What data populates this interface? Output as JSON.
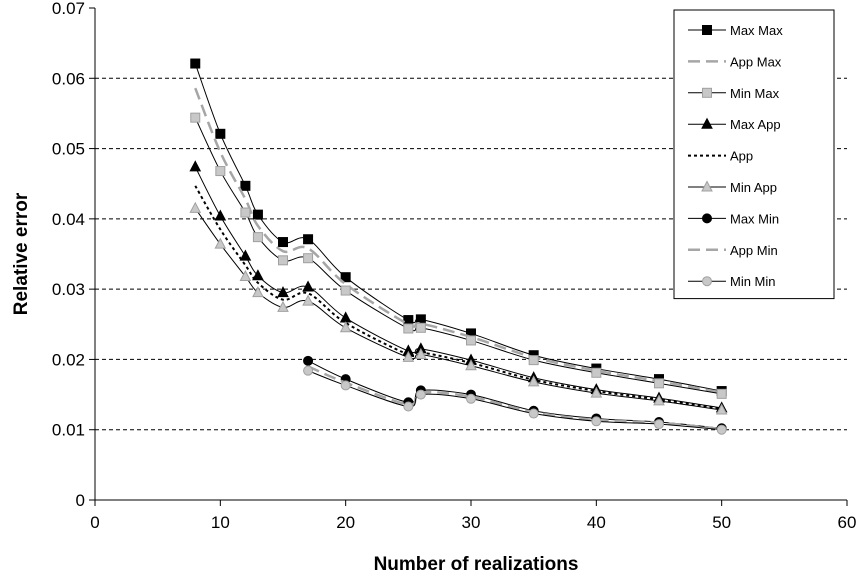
{
  "chart_data": {
    "type": "line",
    "title": "",
    "xlabel": "Number of realizations",
    "ylabel": "Relative error",
    "xlim": [
      0,
      60
    ],
    "ylim": [
      0,
      0.07
    ],
    "x_ticks": [
      "0",
      "10",
      "20",
      "30",
      "40",
      "50",
      "60"
    ],
    "y_ticks": [
      "0",
      "0.01",
      "0.02",
      "0.03",
      "0.04",
      "0.05",
      "0.06",
      "0.07"
    ],
    "grid": "horizontal dashed",
    "legend_position": "top-right",
    "series": [
      {
        "name": "Max Max",
        "color": "#000000",
        "line": "solid",
        "marker": "square",
        "marker_fill": "#000000",
        "x": [
          8,
          10,
          12,
          13,
          15,
          17,
          20,
          25,
          26,
          30,
          35,
          40,
          45,
          50
        ],
        "y": [
          0.0621,
          0.0521,
          0.0447,
          0.0406,
          0.0367,
          0.0371,
          0.0317,
          0.0256,
          0.0257,
          0.0237,
          0.0206,
          0.0187,
          0.0172,
          0.0155
        ]
      },
      {
        "name": "App Max",
        "color": "#a6a6a6",
        "line": "dashed",
        "marker": "none",
        "marker_fill": "none",
        "x": [
          8,
          10,
          12,
          13,
          15,
          17,
          20,
          25,
          26,
          30,
          35,
          40,
          45,
          50
        ],
        "y": [
          0.0586,
          0.0495,
          0.0428,
          0.039,
          0.0354,
          0.0358,
          0.0307,
          0.025,
          0.0251,
          0.0232,
          0.0203,
          0.0184,
          0.0169,
          0.0153
        ]
      },
      {
        "name": "Min Max",
        "color": "#000000",
        "line": "solid",
        "marker": "square",
        "marker_fill": "#c8c8c8",
        "x": [
          8,
          10,
          12,
          13,
          15,
          17,
          20,
          25,
          26,
          30,
          35,
          40,
          45,
          50
        ],
        "y": [
          0.0544,
          0.0468,
          0.0409,
          0.0374,
          0.0341,
          0.0344,
          0.0298,
          0.0244,
          0.0245,
          0.0227,
          0.0199,
          0.0181,
          0.0166,
          0.0151
        ]
      },
      {
        "name": "Max App",
        "color": "#000000",
        "line": "solid",
        "marker": "triangle",
        "marker_fill": "#000000",
        "x": [
          8,
          10,
          12,
          13,
          15,
          17,
          20,
          25,
          26,
          30,
          35,
          40,
          45,
          50
        ],
        "y": [
          0.0474,
          0.0404,
          0.0347,
          0.0319,
          0.0295,
          0.0303,
          0.0259,
          0.0212,
          0.0215,
          0.0199,
          0.0174,
          0.0157,
          0.0145,
          0.0131
        ]
      },
      {
        "name": "App",
        "color": "#000000",
        "line": "dotted",
        "marker": "none",
        "marker_fill": "none",
        "x": [
          8,
          10,
          12,
          13,
          15,
          17,
          20,
          25,
          26,
          30,
          35,
          40,
          45,
          50
        ],
        "y": [
          0.0447,
          0.0385,
          0.0334,
          0.0309,
          0.0285,
          0.0294,
          0.0252,
          0.0207,
          0.021,
          0.0195,
          0.0171,
          0.0155,
          0.0143,
          0.013
        ]
      },
      {
        "name": "Min App",
        "color": "#000000",
        "line": "solid",
        "marker": "triangle",
        "marker_fill": "#c8c8c8",
        "x": [
          8,
          10,
          12,
          13,
          15,
          17,
          20,
          25,
          26,
          30,
          35,
          40,
          45,
          50
        ],
        "y": [
          0.0415,
          0.0364,
          0.0318,
          0.0295,
          0.0274,
          0.0283,
          0.0245,
          0.0203,
          0.0207,
          0.0191,
          0.0168,
          0.0152,
          0.0141,
          0.0128
        ]
      },
      {
        "name": "Max Min",
        "color": "#000000",
        "line": "solid",
        "marker": "circle",
        "marker_fill": "#000000",
        "x": [
          17,
          20,
          25,
          26,
          30,
          35,
          40,
          45,
          50
        ],
        "y": [
          0.0198,
          0.0172,
          0.0139,
          0.0156,
          0.015,
          0.0127,
          0.0116,
          0.0111,
          0.0102
        ]
      },
      {
        "name": "App Min",
        "color": "#a6a6a6",
        "line": "dashed",
        "marker": "none",
        "marker_fill": "none",
        "x": [
          17,
          20,
          25,
          26,
          30,
          35,
          40,
          45,
          50
        ],
        "y": [
          0.019,
          0.0167,
          0.0136,
          0.0153,
          0.0147,
          0.0125,
          0.0114,
          0.011,
          0.0101
        ]
      },
      {
        "name": "Min Min",
        "color": "#000000",
        "line": "solid",
        "marker": "circle",
        "marker_fill": "#c8c8c8",
        "x": [
          17,
          20,
          25,
          26,
          30,
          35,
          40,
          45,
          50
        ],
        "y": [
          0.0184,
          0.0163,
          0.0133,
          0.015,
          0.0144,
          0.0123,
          0.0112,
          0.0108,
          0.01
        ]
      }
    ]
  }
}
